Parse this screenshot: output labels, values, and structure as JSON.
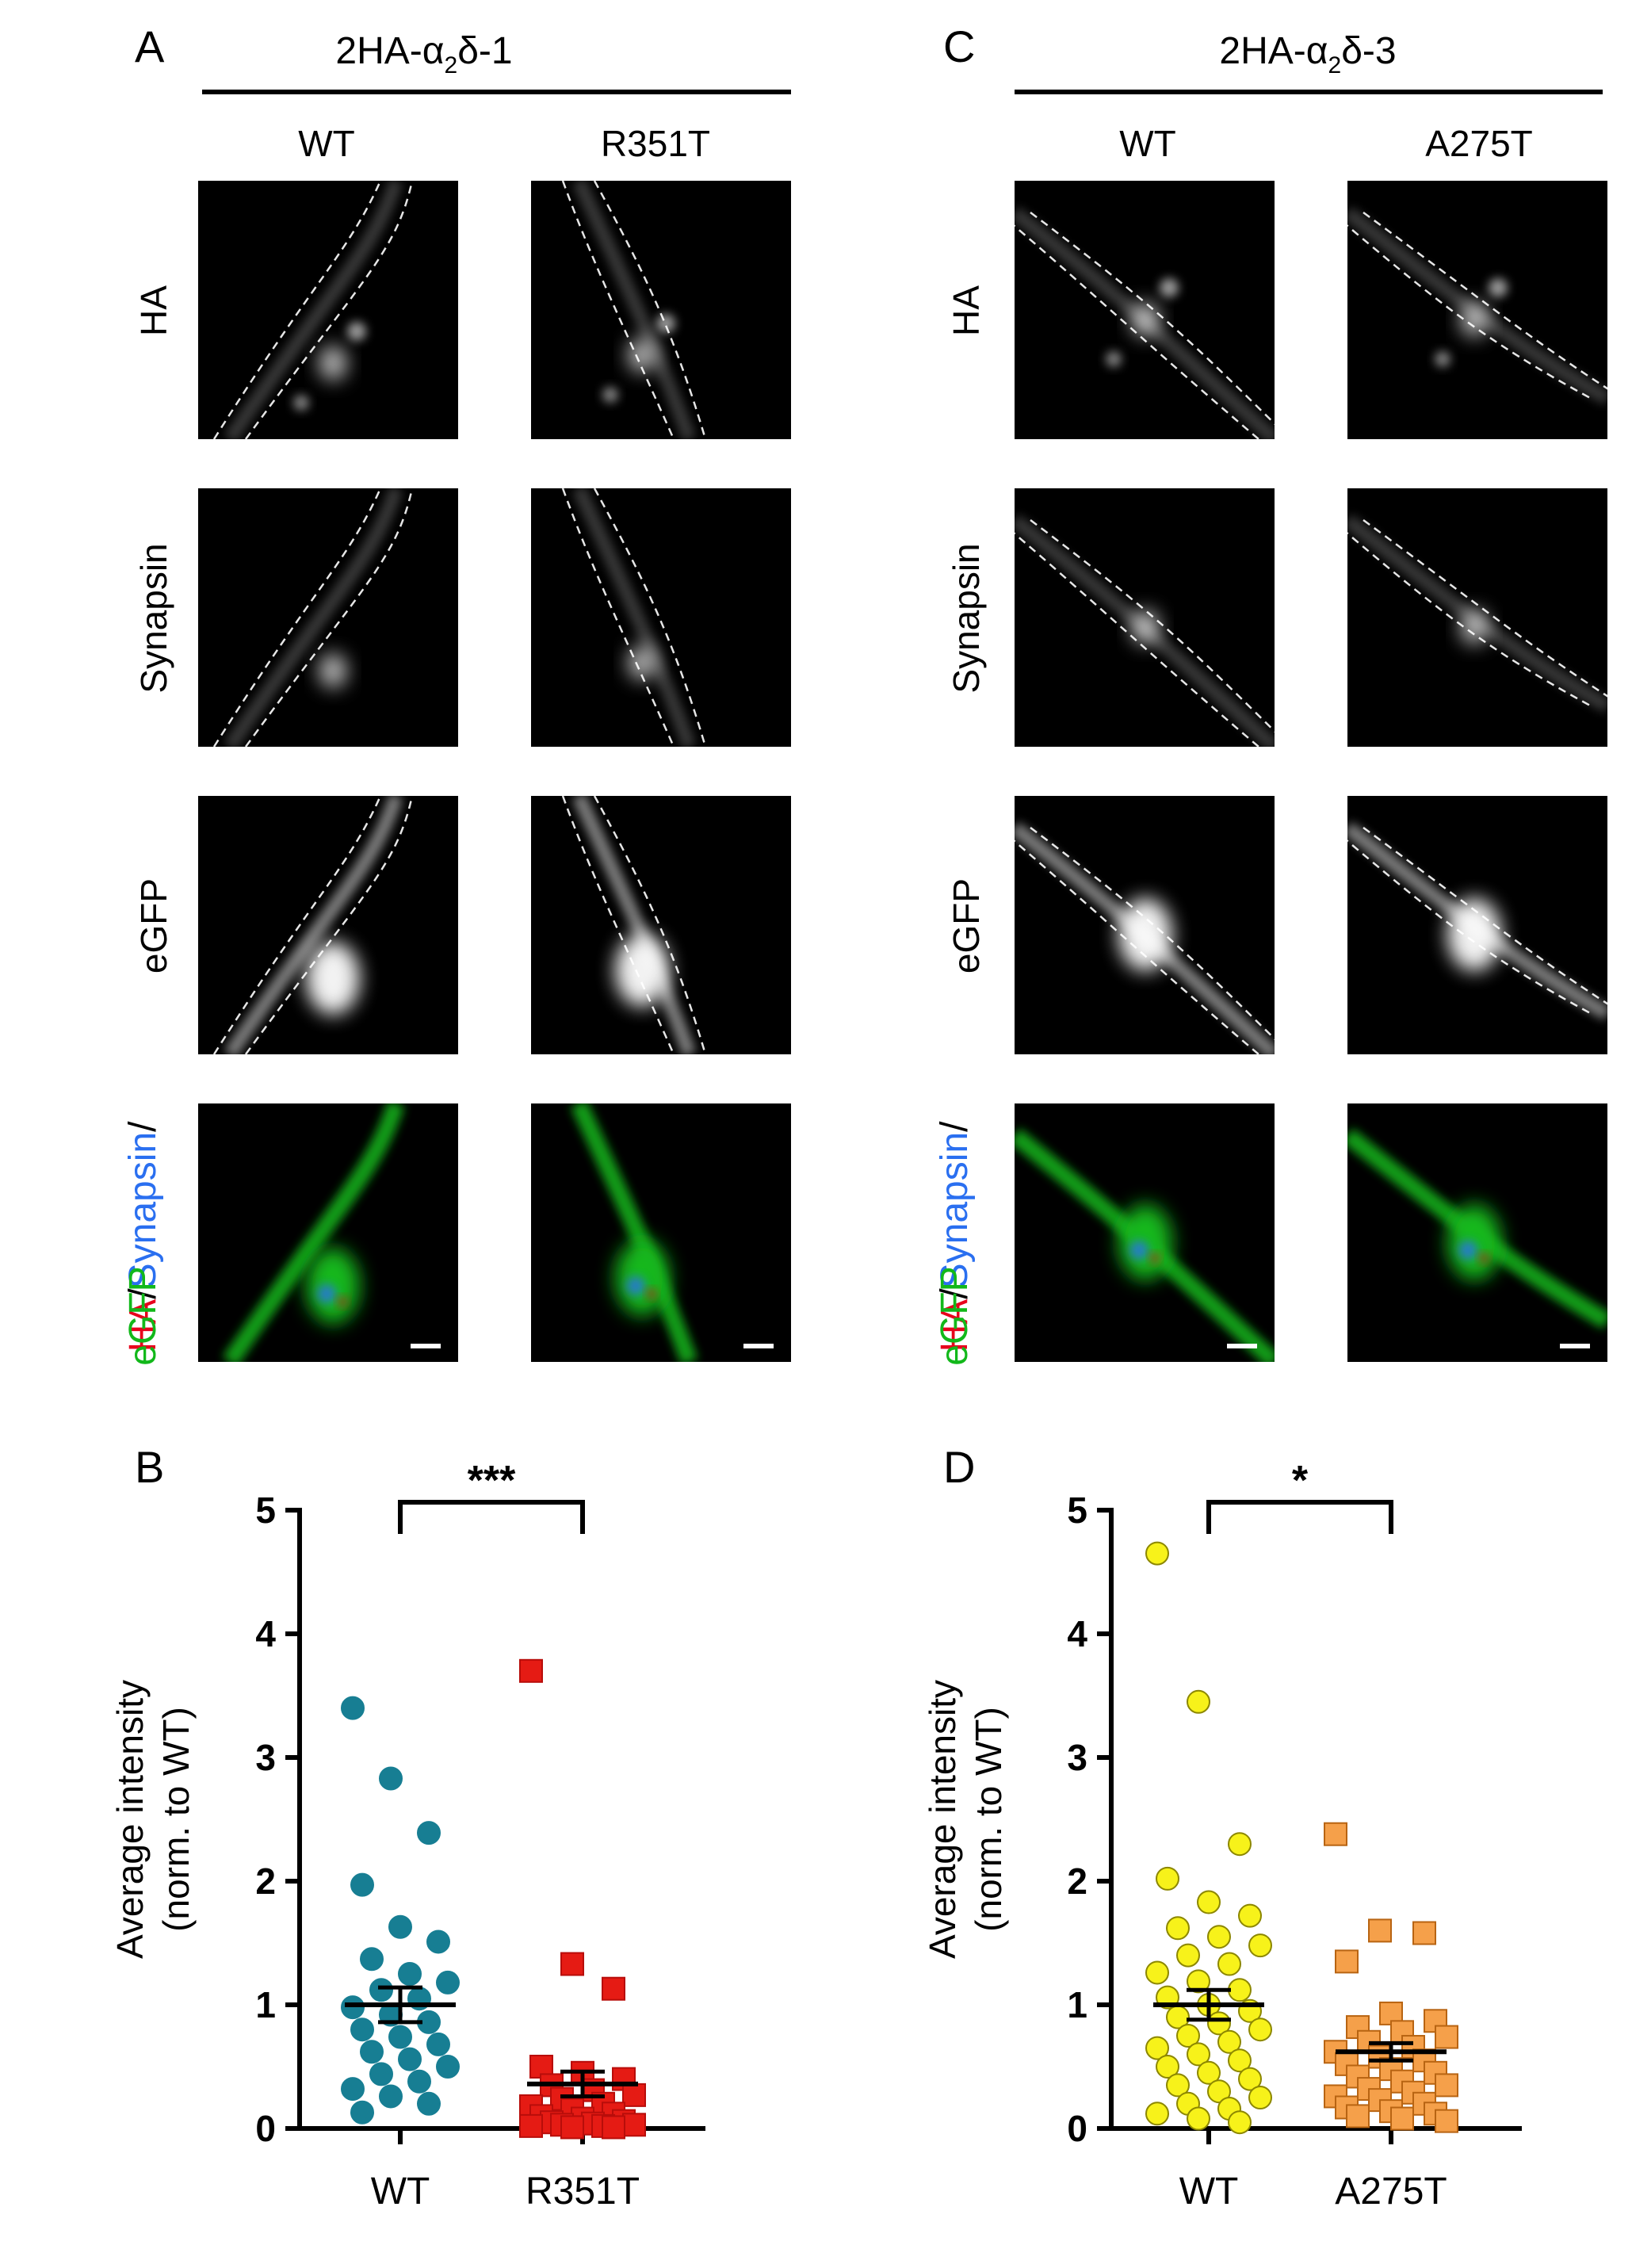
{
  "panel_a": {
    "letter": "A",
    "title": "2HA-α",
    "title_sub": "2",
    "title_tail": "δ-1",
    "col_labels": [
      "WT",
      "R351T"
    ]
  },
  "panel_c": {
    "letter": "C",
    "title": "2HA-α",
    "title_sub": "2",
    "title_tail": "δ-3",
    "col_labels": [
      "WT",
      "A275T"
    ]
  },
  "row_labels": {
    "ha": "HA",
    "synapsin": "Synapsin",
    "egfp": "eGFP",
    "merge_ha": "HA",
    "merge_sep1": "/",
    "merge_synapsin": "Synapsin",
    "merge_sep2": "/",
    "merge_egfp": "eGFP"
  },
  "colors": {
    "ha": "#e8001c",
    "synapsin": "#2a6ff0",
    "egfp": "#12b81a",
    "teal": "#177e93",
    "red_sq": "#e51b14",
    "yellow": "#f7f21a",
    "orange": "#f5a04a"
  },
  "chart_data": [
    {
      "type": "scatter",
      "panel": "B",
      "categories": [
        "WT",
        "R351T"
      ],
      "ylabel_line1": "Average intensity",
      "ylabel_line2": "(norm. to WT)",
      "ylim": [
        0,
        5
      ],
      "yticks": [
        "0",
        "1",
        "2",
        "3",
        "4",
        "5"
      ],
      "significance": "***",
      "series": [
        {
          "values": [
            3.4,
            2.83,
            2.39,
            1.97,
            1.63,
            1.51,
            1.37,
            1.25,
            1.18,
            1.12,
            1.05,
            0.98,
            0.92,
            0.86,
            0.8,
            0.74,
            0.68,
            0.62,
            0.56,
            0.5,
            0.44,
            0.38,
            0.32,
            0.26,
            0.2,
            0.13
          ],
          "mean": 1.0,
          "sem": 0.14,
          "marker": "circle"
        },
        {
          "values": [
            3.7,
            1.33,
            1.13,
            0.5,
            0.45,
            0.4,
            0.35,
            0.31,
            0.27,
            0.24,
            0.2,
            0.18,
            0.15,
            0.12,
            0.1,
            0.08,
            0.06,
            0.05,
            0.04,
            0.03,
            0.03,
            0.02,
            0.02,
            0.01,
            0.01
          ],
          "mean": 0.36,
          "sem": 0.1,
          "marker": "square"
        }
      ]
    },
    {
      "type": "scatter",
      "panel": "D",
      "categories": [
        "WT",
        "A275T"
      ],
      "ylabel_line1": "Average intensity",
      "ylabel_line2": "(norm. to WT)",
      "ylim": [
        0,
        5
      ],
      "yticks": [
        "0",
        "1",
        "2",
        "3",
        "4",
        "5"
      ],
      "significance": "*",
      "series": [
        {
          "values": [
            4.65,
            3.45,
            2.3,
            2.02,
            1.83,
            1.72,
            1.62,
            1.55,
            1.48,
            1.4,
            1.33,
            1.26,
            1.19,
            1.12,
            1.06,
            1.0,
            0.95,
            0.9,
            0.85,
            0.8,
            0.75,
            0.7,
            0.65,
            0.6,
            0.55,
            0.5,
            0.45,
            0.4,
            0.35,
            0.3,
            0.25,
            0.2,
            0.16,
            0.12,
            0.08,
            0.05
          ],
          "mean": 1.0,
          "sem": 0.12,
          "marker": "circle"
        },
        {
          "values": [
            2.38,
            1.6,
            1.58,
            1.35,
            0.93,
            0.87,
            0.82,
            0.78,
            0.74,
            0.7,
            0.66,
            0.62,
            0.58,
            0.55,
            0.52,
            0.48,
            0.45,
            0.42,
            0.38,
            0.35,
            0.32,
            0.29,
            0.26,
            0.23,
            0.2,
            0.17,
            0.14,
            0.12,
            0.1,
            0.08,
            0.06
          ],
          "mean": 0.62,
          "sem": 0.07,
          "marker": "square"
        }
      ]
    }
  ]
}
